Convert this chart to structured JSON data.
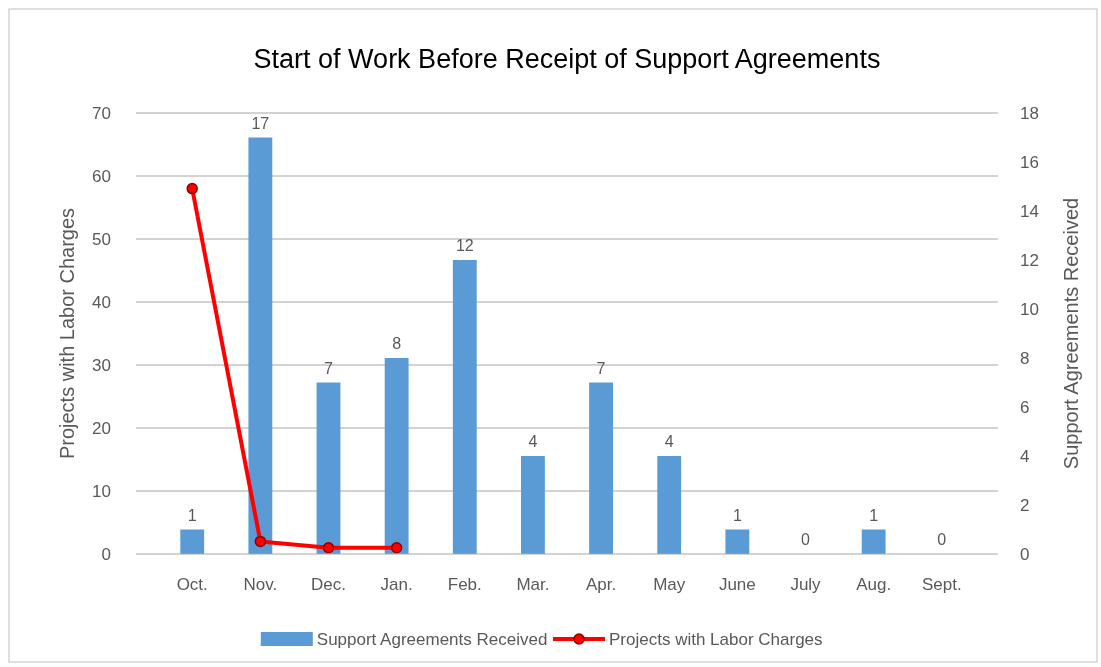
{
  "chart_data": {
    "type": "bar",
    "title": "Start of Work Before Receipt of Support Agreements",
    "ylabel": "Projects with Labor Charges",
    "y2label": "Support Agreements Received",
    "categories": [
      "Oct.",
      "Nov.",
      "Dec.",
      "Jan.",
      "Feb.",
      "Mar.",
      "Apr.",
      "May",
      "June",
      "July",
      "Aug.",
      "Sept."
    ],
    "series": [
      {
        "name": "Support Agreements Received",
        "axis": "y2",
        "color": "#5b9bd5",
        "values": [
          1,
          17,
          7,
          8,
          12,
          4,
          7,
          4,
          1,
          0,
          1,
          0
        ],
        "value_labels": [
          "1",
          "17",
          "7",
          "8",
          "12",
          "4",
          "7",
          "4",
          "1",
          "0",
          "1",
          "0"
        ]
      },
      {
        "name": "Projects with Labor Charges",
        "type": "line",
        "color": "#ff0000",
        "marker": "circle",
        "values": [
          58,
          2,
          1,
          1,
          null,
          null,
          null,
          null,
          null,
          null,
          null,
          null
        ]
      }
    ],
    "ylim": [
      0,
      70
    ],
    "yticks": [
      0,
      10,
      20,
      30,
      40,
      50,
      60,
      70
    ],
    "y2lim": [
      0,
      18
    ],
    "y2ticks": [
      0,
      2,
      4,
      6,
      8,
      10,
      12,
      14,
      16,
      18
    ],
    "grid": "y",
    "legend": "bottom"
  }
}
